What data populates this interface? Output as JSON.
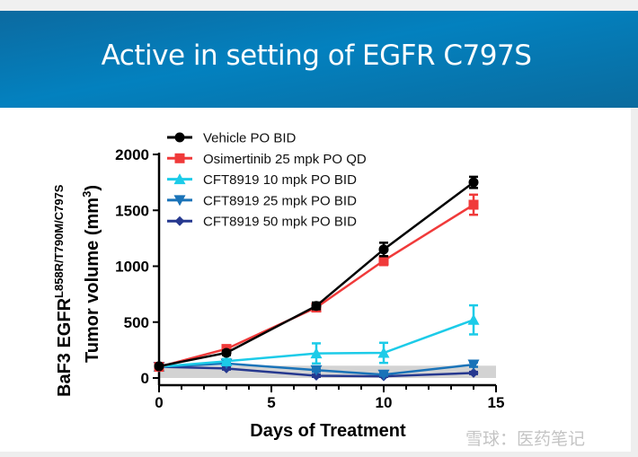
{
  "slide": {
    "title": "Active in setting of EGFR C797S",
    "header_color": "#0381bf"
  },
  "watermark": "雪球：医药笔记",
  "chart_data": {
    "type": "line",
    "title": "",
    "xlabel": "Days of Treatment",
    "ylabel_line1": "BaF3 EGFR",
    "ylabel_line1_sup": "L858R/T790M/C797S",
    "ylabel_line2": "Tumor volume (mm",
    "ylabel_line2_sup": "3",
    "ylabel_line2_end": ")",
    "xlim": [
      0,
      15
    ],
    "ylim": [
      0,
      2000
    ],
    "xticks": [
      "0",
      "5",
      "10",
      "15"
    ],
    "yticks": [
      "0",
      "500",
      "1000",
      "1500",
      "2000"
    ],
    "grid": false,
    "legend_position": "top-left",
    "shaded_band": {
      "y_range": [
        0,
        110
      ],
      "color": "#d3d3d3"
    },
    "x": [
      0,
      3,
      7,
      10,
      14
    ],
    "series": [
      {
        "name": "Vehicle PO BID",
        "color": "#000000",
        "marker": "circle",
        "values": [
          105,
          225,
          645,
          1150,
          1750
        ],
        "errors": [
          10,
          20,
          30,
          60,
          50
        ]
      },
      {
        "name": "Osimertinib 25 mpk PO QD",
        "color": "#f03a3a",
        "marker": "square",
        "values": [
          100,
          260,
          630,
          1050,
          1550
        ],
        "errors": [
          10,
          20,
          25,
          40,
          90
        ]
      },
      {
        "name": "CFT8919 10 mpk PO BID",
        "color": "#1ccbe8",
        "marker": "triangle-up",
        "values": [
          100,
          150,
          220,
          225,
          520
        ],
        "errors": [
          10,
          20,
          90,
          90,
          130
        ]
      },
      {
        "name": "CFT8919 25 mpk PO BID",
        "color": "#1a73b8",
        "marker": "triangle-down",
        "values": [
          100,
          130,
          70,
          30,
          120
        ],
        "errors": [
          5,
          15,
          15,
          10,
          20
        ]
      },
      {
        "name": "CFT8919 50 mpk PO BID",
        "color": "#26388f",
        "marker": "diamond",
        "values": [
          100,
          85,
          20,
          15,
          45
        ],
        "errors": [
          5,
          10,
          10,
          5,
          10
        ]
      }
    ]
  }
}
